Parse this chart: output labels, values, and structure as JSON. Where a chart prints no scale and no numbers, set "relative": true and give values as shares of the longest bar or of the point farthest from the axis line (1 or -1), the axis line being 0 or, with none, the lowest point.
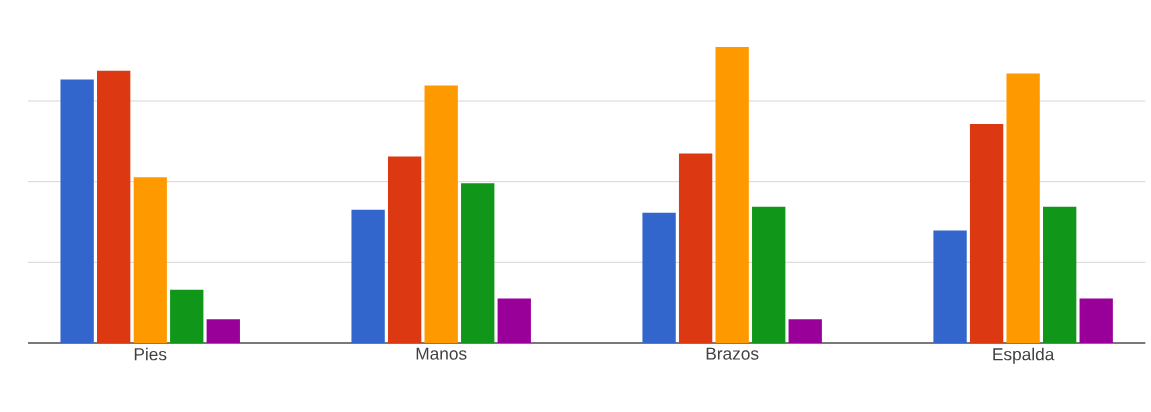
{
  "chart_data": {
    "type": "bar",
    "relative": true,
    "grid": "y",
    "categories": [
      "Pies",
      "Manos",
      "Brazos",
      "Espalda"
    ],
    "series": [
      {
        "color": "#3366cc",
        "values": [
          0.89,
          0.45,
          0.44,
          0.38
        ]
      },
      {
        "color": "#dc3912",
        "values": [
          0.92,
          0.63,
          0.64,
          0.74
        ]
      },
      {
        "color": "#ff9900",
        "values": [
          0.56,
          0.87,
          1,
          0.91
        ]
      },
      {
        "color": "#109618",
        "values": [
          0.18,
          0.54,
          0.46,
          0.46
        ]
      },
      {
        "color": "#990099",
        "values": [
          0.08,
          0.15,
          0.08,
          0.15
        ]
      }
    ]
  }
}
